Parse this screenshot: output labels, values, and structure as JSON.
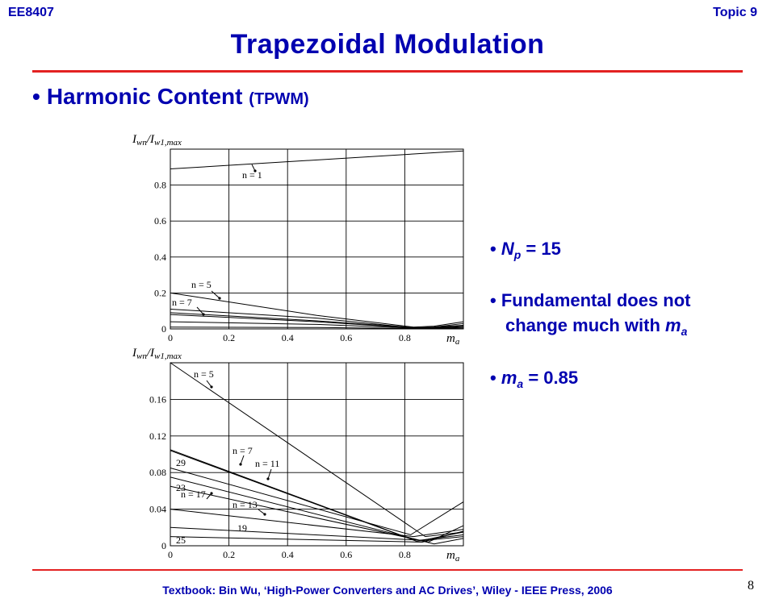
{
  "header": {
    "course": "EE8407",
    "topic": "Topic 9"
  },
  "title": "Trapezoidal Modulation",
  "section": {
    "bullet": "•",
    "label": "Harmonic Content",
    "sub": "(TPWM)"
  },
  "notes": {
    "np_prefix": "N",
    "np_sub": "p",
    "np_value": "= 15",
    "fund_line1": "Fundamental does not",
    "fund_line2": "change much with",
    "fund_var": "m",
    "fund_sub": "a",
    "ma_prefix": "m",
    "ma_sub": "a",
    "ma_value": "= 0.85"
  },
  "footer": "Textbook: Bin Wu, ‘High-Power Converters and AC Drives’, Wiley - IEEE Press, 2006",
  "page_number": "8",
  "colors": {
    "accent": "#0000b0",
    "rule": "#e32222"
  },
  "chart_data": [
    {
      "type": "line",
      "ylabel": "Iwn/Iw1,max",
      "xlabel": "ma",
      "xlim": [
        0,
        1.0
      ],
      "ylim": [
        0,
        1.0
      ],
      "xticks": [
        "0",
        "0.2",
        "0.4",
        "0.6",
        "0.8"
      ],
      "yticks": [
        "0",
        "0.2",
        "0.4",
        "0.6",
        "0.8"
      ],
      "grid": true,
      "annotations": [
        "n = 1",
        "n = 5",
        "n = 7"
      ],
      "series": [
        {
          "name": "n = 1",
          "x": [
            0,
            1.0
          ],
          "y": [
            0.89,
            0.99
          ]
        },
        {
          "name": "n = 5",
          "x": [
            0,
            0.5,
            0.83,
            0.9,
            1.0
          ],
          "y": [
            0.2,
            0.075,
            0.01,
            0.015,
            0.04
          ]
        },
        {
          "name": "n = 7",
          "x": [
            0,
            0.5,
            0.83,
            0.9,
            1.0
          ],
          "y": [
            0.11,
            0.06,
            0.006,
            0.01,
            0.03
          ]
        },
        {
          "name": "",
          "x": [
            0,
            0.5,
            0.85,
            1.0
          ],
          "y": [
            0.09,
            0.045,
            0.005,
            0.02
          ]
        },
        {
          "name": "",
          "x": [
            0,
            0.5,
            0.85,
            1.0
          ],
          "y": [
            0.08,
            0.04,
            0.004,
            0.015
          ]
        },
        {
          "name": "",
          "x": [
            0,
            0.5,
            0.85,
            1.0
          ],
          "y": [
            0.04,
            0.025,
            0.003,
            0.01
          ]
        },
        {
          "name": "",
          "x": [
            0,
            0.5,
            0.85,
            1.0
          ],
          "y": [
            0.01,
            0.008,
            0.002,
            0.005
          ]
        }
      ]
    },
    {
      "type": "line",
      "ylabel": "Iwn/Iw1,max",
      "xlabel": "ma",
      "xlim": [
        0,
        1.0
      ],
      "ylim": [
        0,
        0.2
      ],
      "xticks": [
        "0",
        "0.2",
        "0.4",
        "0.6",
        "0.8"
      ],
      "yticks": [
        "0",
        "0.04",
        "0.08",
        "0.12",
        "0.16"
      ],
      "grid": true,
      "annotations": [
        "n = 5",
        "n = 7",
        "n = 11",
        "n = 17",
        "n = 13",
        "29",
        "23",
        "19",
        "25"
      ],
      "series": [
        {
          "name": "n = 5",
          "x": [
            0,
            0.87,
            1.0
          ],
          "y": [
            0.2,
            0.01,
            0.015
          ]
        },
        {
          "name": "n = 7",
          "x": [
            0,
            0.84,
            1.0
          ],
          "y": [
            0.104,
            0.005,
            0.01
          ]
        },
        {
          "name": "n = 11",
          "x": [
            0,
            0.8,
            0.9,
            1.0
          ],
          "y": [
            0.105,
            0.01,
            0.002,
            0.008
          ]
        },
        {
          "name": "29",
          "x": [
            0,
            0.82,
            1.0
          ],
          "y": [
            0.085,
            0.012,
            0.048
          ]
        },
        {
          "name": "n = 17",
          "x": [
            0,
            0.85,
            1.0
          ],
          "y": [
            0.075,
            0.006,
            0.012
          ]
        },
        {
          "name": "23",
          "x": [
            0,
            0.88,
            1.0
          ],
          "y": [
            0.065,
            0.004,
            0.022
          ]
        },
        {
          "name": "n = 13",
          "x": [
            0,
            0.83,
            1.0
          ],
          "y": [
            0.04,
            0.01,
            0.018
          ]
        },
        {
          "name": "19",
          "x": [
            0,
            0.86,
            1.0
          ],
          "y": [
            0.02,
            0.006,
            0.015
          ]
        },
        {
          "name": "25",
          "x": [
            0,
            0.86,
            1.0
          ],
          "y": [
            0.01,
            0.004,
            0.016
          ]
        }
      ]
    }
  ]
}
